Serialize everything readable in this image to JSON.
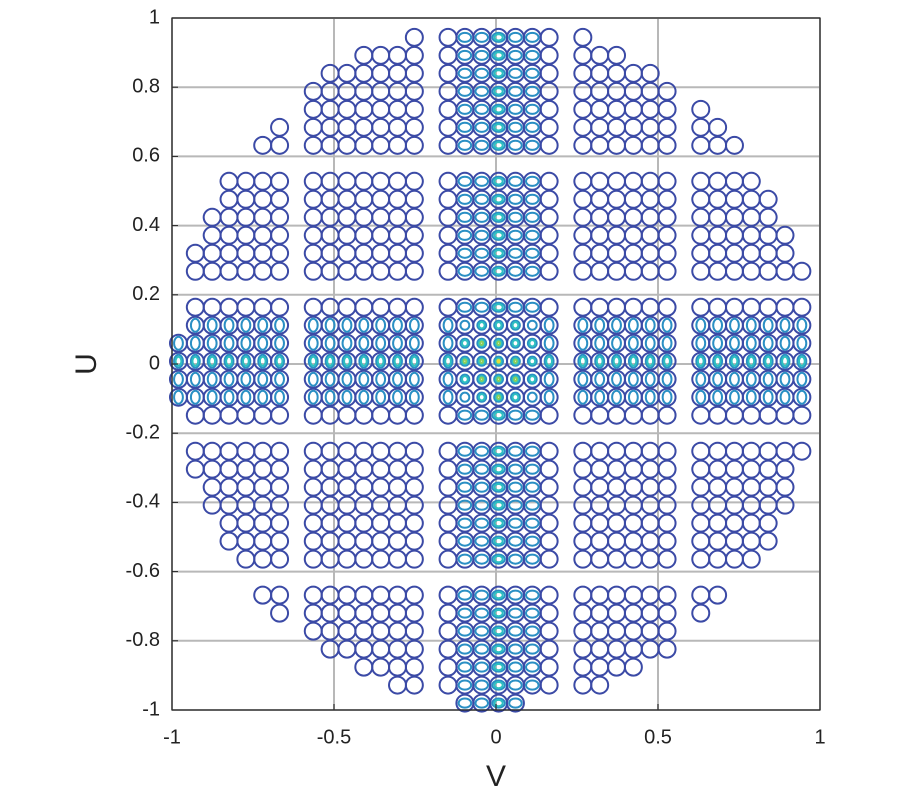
{
  "chart_data": {
    "type": "contour",
    "xlabel": "V",
    "ylabel": "U",
    "xlim": [
      -1,
      1
    ],
    "ylim": [
      -1,
      1
    ],
    "xticks": [
      -1,
      -0.5,
      0,
      0.5,
      1
    ],
    "yticks": [
      -1,
      -0.8,
      -0.6,
      -0.4,
      -0.2,
      0,
      0.2,
      0.4,
      0.6,
      0.8,
      1
    ],
    "grid": true
  }
}
